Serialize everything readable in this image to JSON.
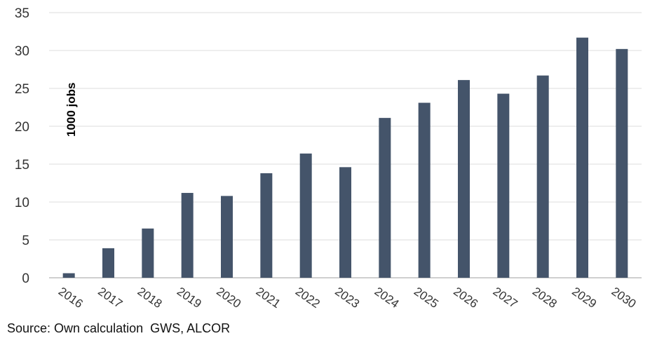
{
  "chart_data": {
    "type": "bar",
    "title": "",
    "xlabel": "",
    "ylabel": "1000 jobs",
    "categories": [
      "2016",
      "2017",
      "2018",
      "2019",
      "2020",
      "2021",
      "2022",
      "2023",
      "2024",
      "2025",
      "2026",
      "2027",
      "2028",
      "2029",
      "2030"
    ],
    "values": [
      0.6,
      3.9,
      6.5,
      11.2,
      10.8,
      13.8,
      16.4,
      14.6,
      21.1,
      23.1,
      26.1,
      24.3,
      26.7,
      31.7,
      30.2
    ],
    "ylim": [
      0,
      35
    ],
    "yticks": [
      "0",
      "5",
      "10",
      "15",
      "20",
      "25",
      "30",
      "35"
    ],
    "grid": true,
    "colors": {
      "bar": "#44546a",
      "grid": "#e3e3e3",
      "axis": "#bfbfbf"
    }
  },
  "source_note": "Source: Own calculation  GWS, ALCOR"
}
